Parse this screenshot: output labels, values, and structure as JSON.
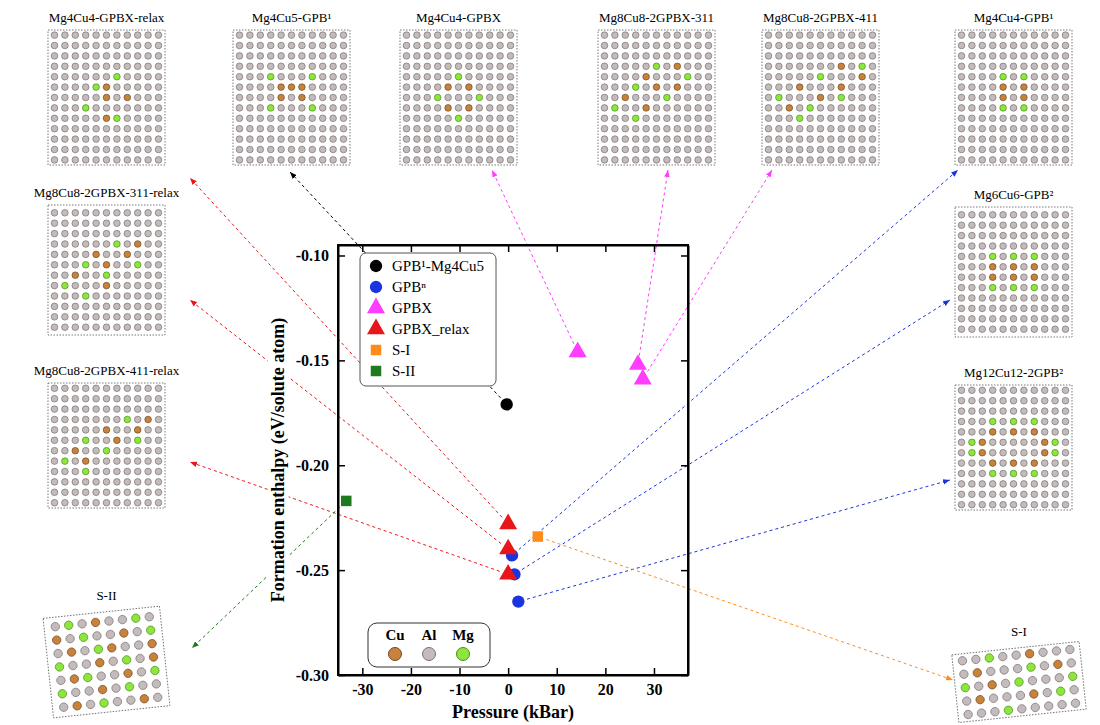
{
  "chart_data": {
    "type": "scatter",
    "x_label": "Pressure (kBar)",
    "y_label": "Formation enthalpy (eV/solute atom)",
    "xlim": [
      -35,
      37
    ],
    "xticks": [
      -30,
      -20,
      -10,
      0,
      10,
      20,
      30
    ],
    "ylim": [
      -0.3,
      -0.095
    ],
    "yticks": [
      {
        "value": -0.3,
        "label": "-0.30"
      },
      {
        "value": -0.25,
        "label": "-0.25"
      },
      {
        "value": -0.2,
        "label": "-0.20"
      },
      {
        "value": -0.15,
        "label": "-0.15"
      },
      {
        "value": -0.1,
        "label": "-0.10"
      }
    ],
    "grid": false,
    "legend": "upper left",
    "series": [
      {
        "name": "GPB¹-Mg4Cu5",
        "color": "#000000",
        "marker": "circle",
        "x": [
          -0.3
        ],
        "values": [
          -0.171
        ],
        "structures": [
          "Mg4Cu5-GPB¹"
        ]
      },
      {
        "name": "GPBⁿ",
        "color": "#1a35e0",
        "marker": "circle",
        "x": [
          0.8,
          1.3,
          2.1
        ],
        "values": [
          -0.243,
          -0.252,
          -0.265
        ],
        "structures": [
          "Mg4Cu4-GPB¹",
          "Mg6Cu6-GPB²",
          "Mg12Cu12-2GPB²"
        ]
      },
      {
        "name": "GPBX",
        "color": "#ff3cff",
        "marker": "triangle",
        "x": [
          14.3,
          26.7,
          27.7
        ],
        "values": [
          -0.146,
          -0.152,
          -0.159
        ],
        "structures": [
          "Mg4Cu4-GPBX",
          "Mg8Cu8-2GPBX-311",
          "Mg8Cu8-2GPBX-411"
        ]
      },
      {
        "name": "GPBX_relax",
        "color": "#e8161b",
        "marker": "triangle",
        "x": [
          0,
          0,
          0
        ],
        "values": [
          -0.228,
          -0.24,
          -0.252
        ],
        "structures": [
          "Mg4Cu4-GPBX-relax",
          "Mg8Cu8-2GPBX-311-relax",
          "Mg8Cu8-2GPBX-411-relax"
        ]
      },
      {
        "name": "S-I",
        "color": "#ff8c1a",
        "marker": "square",
        "x": [
          6.1
        ],
        "values": [
          -0.234
        ],
        "structures": [
          "S-I"
        ]
      },
      {
        "name": "S-II",
        "color": "#1e7a1e",
        "marker": "square",
        "x": [
          -33.3
        ],
        "values": [
          -0.217
        ],
        "structures": [
          "S-II"
        ]
      }
    ],
    "atom_legend": [
      {
        "name": "Cu",
        "color": "#c8823a"
      },
      {
        "name": "Al",
        "color": "#c4bcbc"
      },
      {
        "name": "Mg",
        "color": "#8ce63c"
      }
    ]
  }
}
